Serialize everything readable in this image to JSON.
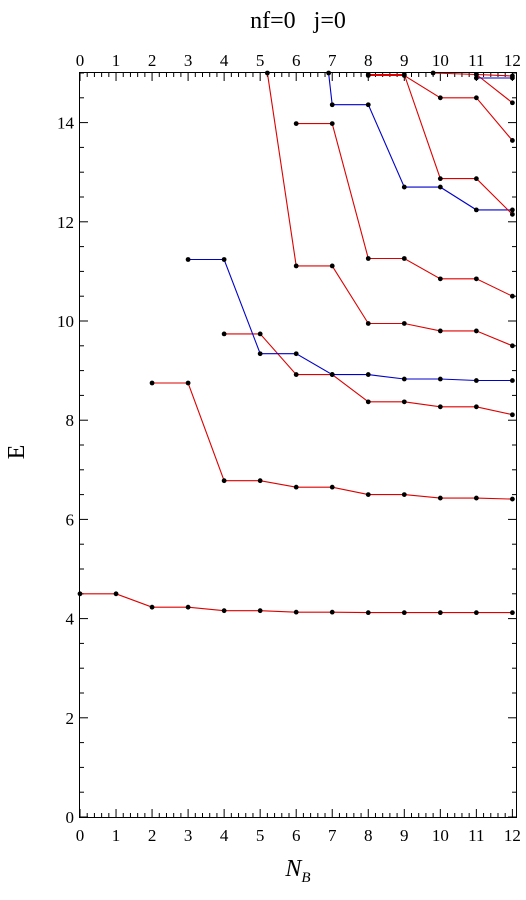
{
  "chart_data": {
    "type": "line",
    "title": "nf=0   j=0",
    "xlabel_base": "N",
    "xlabel_sub": "B",
    "ylabel": "E",
    "xlim": [
      0,
      12.1
    ],
    "ylim": [
      0,
      15
    ],
    "x_ticks": [
      0,
      1,
      2,
      3,
      4,
      5,
      6,
      7,
      8,
      9,
      10,
      11,
      12
    ],
    "y_ticks": [
      0,
      2,
      4,
      6,
      8,
      10,
      12,
      14
    ],
    "grid": false,
    "series": [
      {
        "color": "#dd0000",
        "x": [
          0,
          1,
          2,
          3,
          4,
          5,
          6,
          7,
          8,
          9,
          10,
          11,
          12
        ],
        "y": [
          4.5,
          4.5,
          4.23,
          4.23,
          4.16,
          4.16,
          4.13,
          4.13,
          4.12,
          4.12,
          4.12,
          4.12,
          4.12
        ]
      },
      {
        "color": "#dd0000",
        "x": [
          2,
          3,
          4,
          5,
          6,
          7,
          8,
          9,
          10,
          11,
          12
        ],
        "y": [
          8.75,
          8.75,
          6.78,
          6.78,
          6.65,
          6.65,
          6.5,
          6.5,
          6.43,
          6.43,
          6.41
        ]
      },
      {
        "color": "#dd0000",
        "x": [
          4,
          5,
          6,
          7,
          8,
          9,
          10,
          11,
          12
        ],
        "y": [
          9.74,
          9.74,
          8.92,
          8.92,
          8.37,
          8.37,
          8.27,
          8.27,
          8.11
        ]
      },
      {
        "color": "#0000cc",
        "x": [
          3,
          4,
          5,
          6,
          7,
          8,
          9,
          10,
          11,
          12
        ],
        "y": [
          11.24,
          11.24,
          9.34,
          9.34,
          8.92,
          8.92,
          8.83,
          8.83,
          8.8,
          8.8
        ]
      },
      {
        "color": "#dd0000",
        "x": [
          5.2,
          6,
          7,
          8,
          9,
          10,
          11,
          12
        ],
        "y": [
          15,
          11.11,
          11.11,
          9.95,
          9.95,
          9.8,
          9.8,
          9.5
        ]
      },
      {
        "color": "#dd0000",
        "x": [
          6,
          7,
          8,
          9,
          10,
          11,
          12
        ],
        "y": [
          13.98,
          13.98,
          11.26,
          11.26,
          10.85,
          10.85,
          10.5
        ]
      },
      {
        "color": "#0000cc",
        "x": [
          6.9,
          7,
          8,
          9,
          10,
          11,
          12
        ],
        "y": [
          15,
          14.36,
          14.36,
          12.7,
          12.7,
          12.24,
          12.24
        ]
      },
      {
        "color": "#dd0000",
        "x": [
          8,
          9,
          10,
          11,
          12
        ],
        "y": [
          14.97,
          14.97,
          12.87,
          12.87,
          12.15
        ]
      },
      {
        "color": "#dd0000",
        "x": [
          8,
          9,
          10,
          11,
          12
        ],
        "y": [
          14.95,
          14.95,
          14.5,
          14.5,
          13.64
        ]
      },
      {
        "color": "#dd0000",
        "x": [
          9.8,
          11,
          12
        ],
        "y": [
          15,
          14.97,
          14.4
        ]
      },
      {
        "color": "#0000cc",
        "x": [
          11,
          12
        ],
        "y": [
          14.9,
          14.9
        ]
      },
      {
        "color": "#dd0000",
        "x": [
          11,
          12
        ],
        "y": [
          14.97,
          14.94
        ]
      }
    ]
  }
}
